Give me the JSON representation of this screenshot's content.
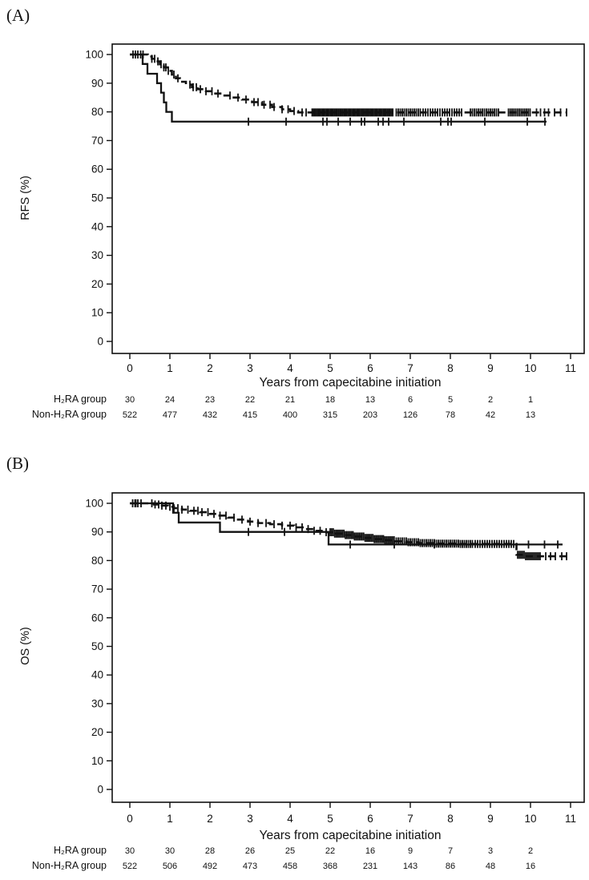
{
  "colors": {
    "ink": "#111111",
    "background": "#ffffff"
  },
  "chart_data": [
    {
      "type": "line",
      "chart_kind": "kaplan-meier",
      "panel_label": "(A)",
      "title": "",
      "xlabel": "Years from capecitabine initiation",
      "ylabel": "RFS (%)",
      "xlim": [
        0,
        11
      ],
      "ylim": [
        0,
        100
      ],
      "grid": false,
      "legend": "none",
      "xticks": [
        0,
        1,
        2,
        3,
        4,
        5,
        6,
        7,
        8,
        9,
        10,
        11
      ],
      "yticks": [
        0,
        10,
        20,
        30,
        40,
        50,
        60,
        70,
        80,
        90,
        100
      ],
      "series": [
        {
          "id": "h2ra",
          "name": "H₂RA group",
          "line_style": "solid",
          "steps": [
            [
              0,
              100
            ],
            [
              0.32,
              96.7
            ],
            [
              0.44,
              93.3
            ],
            [
              0.68,
              90
            ],
            [
              0.78,
              86.7
            ],
            [
              0.85,
              83.3
            ],
            [
              0.91,
              80
            ],
            [
              1.05,
              76.6
            ]
          ],
          "end_year": 10.4,
          "censor_years": [
            2.96,
            3.9,
            4.82,
            4.92,
            5.2,
            5.5,
            5.78,
            5.86,
            6.2,
            6.32,
            6.46,
            6.84,
            7.76,
            7.94,
            8.02,
            8.86,
            9.92,
            10.36
          ],
          "censor_ranges": []
        },
        {
          "id": "non-h2ra",
          "name": "Non-H₂RA group",
          "line_style": "dashed",
          "steps": [
            [
              0,
              100
            ],
            [
              0.45,
              99.3
            ],
            [
              0.55,
              98.5
            ],
            [
              0.65,
              97.6
            ],
            [
              0.75,
              96.6
            ],
            [
              0.85,
              95.5
            ],
            [
              0.95,
              94.3
            ],
            [
              1.05,
              93.0
            ],
            [
              1.15,
              91.7
            ],
            [
              1.25,
              90.5
            ],
            [
              1.4,
              89.5
            ],
            [
              1.55,
              88.6
            ],
            [
              1.7,
              87.9
            ],
            [
              1.9,
              87.2
            ],
            [
              2.1,
              86.4
            ],
            [
              2.3,
              85.7
            ],
            [
              2.55,
              85.0
            ],
            [
              2.8,
              84.3
            ],
            [
              3.05,
              83.4
            ],
            [
              3.3,
              82.5
            ],
            [
              3.55,
              81.7
            ],
            [
              3.8,
              80.9
            ],
            [
              4.0,
              80.3
            ],
            [
              4.2,
              79.8
            ]
          ],
          "end_year": 10.9,
          "censor_years": [
            0.08,
            0.14,
            0.2,
            0.27,
            0.33,
            0.55,
            0.62,
            0.7,
            0.78,
            0.85,
            0.9,
            0.96,
            1.1,
            1.2,
            1.5,
            1.58,
            1.66,
            1.76,
            1.9,
            2.05,
            2.2,
            2.5,
            2.7,
            2.9,
            3.1,
            3.2,
            3.35,
            3.5,
            3.6,
            3.8,
            3.95,
            4.1,
            4.3,
            4.4,
            10.6,
            10.75,
            10.9
          ],
          "censor_ranges": [
            {
              "from": 4.55,
              "to": 6.58,
              "step": 0.033
            },
            {
              "from": 6.65,
              "to": 7.25,
              "step": 0.05
            },
            {
              "from": 7.32,
              "to": 8.28,
              "step": 0.06
            },
            {
              "from": 8.5,
              "to": 9.2,
              "step": 0.05
            },
            {
              "from": 9.45,
              "to": 10.0,
              "step": 0.045
            },
            {
              "from": 10.15,
              "to": 10.45,
              "step": 0.1
            }
          ]
        }
      ],
      "risk_table": {
        "rows": [
          {
            "label": "H₂RA group",
            "values": [
              "30",
              "24",
              "23",
              "22",
              "21",
              "18",
              "13",
              "6",
              "5",
              "2",
              "1"
            ]
          },
          {
            "label": "Non-H₂RA group",
            "values": [
              "522",
              "477",
              "432",
              "415",
              "400",
              "315",
              "203",
              "126",
              "78",
              "42",
              "13"
            ]
          }
        ]
      }
    },
    {
      "type": "line",
      "chart_kind": "kaplan-meier",
      "panel_label": "(B)",
      "title": "",
      "xlabel": "Years from capecitabine initiation",
      "ylabel": "OS (%)",
      "xlim": [
        0,
        11
      ],
      "ylim": [
        0,
        100
      ],
      "grid": false,
      "legend": "none",
      "xticks": [
        0,
        1,
        2,
        3,
        4,
        5,
        6,
        7,
        8,
        9,
        10,
        11
      ],
      "yticks": [
        0,
        10,
        20,
        30,
        40,
        50,
        60,
        70,
        80,
        90,
        100
      ],
      "series": [
        {
          "id": "h2ra",
          "name": "H₂RA group",
          "line_style": "solid",
          "steps": [
            [
              0,
              100
            ],
            [
              1.08,
              96.7
            ],
            [
              1.22,
              93.3
            ],
            [
              2.25,
              90
            ],
            [
              4.96,
              85.6
            ]
          ],
          "end_year": 10.8,
          "censor_years": [
            0.15,
            2.96,
            3.86,
            5.5,
            6.6,
            7.6,
            9.95,
            10.35,
            10.68
          ],
          "censor_ranges": []
        },
        {
          "id": "non-h2ra",
          "name": "Non-H₂RA group",
          "line_style": "dashed",
          "steps": [
            [
              0,
              100
            ],
            [
              0.6,
              99.6
            ],
            [
              0.8,
              99.2
            ],
            [
              0.95,
              98.8
            ],
            [
              1.1,
              98.3
            ],
            [
              1.3,
              97.8
            ],
            [
              1.5,
              97.4
            ],
            [
              1.75,
              96.9
            ],
            [
              2.0,
              96.3
            ],
            [
              2.2,
              95.7
            ],
            [
              2.45,
              95.0
            ],
            [
              2.7,
              94.3
            ],
            [
              2.95,
              93.6
            ],
            [
              3.2,
              93.1
            ],
            [
              3.5,
              92.7
            ],
            [
              3.8,
              92.2
            ],
            [
              4.1,
              91.6
            ],
            [
              4.35,
              91.0
            ],
            [
              4.6,
              90.4
            ],
            [
              4.85,
              89.9
            ],
            [
              5.1,
              89.4
            ],
            [
              5.35,
              88.9
            ],
            [
              5.6,
              88.4
            ],
            [
              5.85,
              87.9
            ],
            [
              6.1,
              87.5
            ],
            [
              6.35,
              87.1
            ],
            [
              6.6,
              86.7
            ],
            [
              6.9,
              86.4
            ],
            [
              7.2,
              86.1
            ],
            [
              7.6,
              85.9
            ],
            [
              8.2,
              85.8
            ],
            [
              9.65,
              82.0
            ],
            [
              9.85,
              81.5
            ]
          ],
          "end_year": 10.9,
          "censor_years": [
            0.07,
            0.13,
            0.2,
            0.28,
            0.55,
            0.63,
            0.72,
            0.8,
            0.9,
            1.0,
            1.1,
            1.2,
            1.3,
            1.45,
            1.6,
            1.7,
            1.8,
            1.95,
            2.1,
            2.25,
            2.4,
            2.6,
            2.8,
            3.0,
            3.2,
            3.4,
            3.6,
            3.8,
            4.0,
            4.15,
            4.3,
            4.45,
            4.6,
            4.75,
            4.9,
            10.38,
            10.5,
            10.62,
            10.78,
            10.9
          ],
          "censor_ranges": [
            {
              "from": 5.0,
              "to": 6.6,
              "step": 0.038
            },
            {
              "from": 6.65,
              "to": 8.55,
              "step": 0.05
            },
            {
              "from": 8.62,
              "to": 9.6,
              "step": 0.06
            },
            {
              "from": 9.68,
              "to": 10.25,
              "step": 0.04
            }
          ]
        }
      ],
      "risk_table": {
        "rows": [
          {
            "label": "H₂RA group",
            "values": [
              "30",
              "30",
              "28",
              "26",
              "25",
              "22",
              "16",
              "9",
              "7",
              "3",
              "2"
            ]
          },
          {
            "label": "Non-H₂RA group",
            "values": [
              "522",
              "506",
              "492",
              "473",
              "458",
              "368",
              "231",
              "143",
              "86",
              "48",
              "16"
            ]
          }
        ]
      }
    }
  ]
}
